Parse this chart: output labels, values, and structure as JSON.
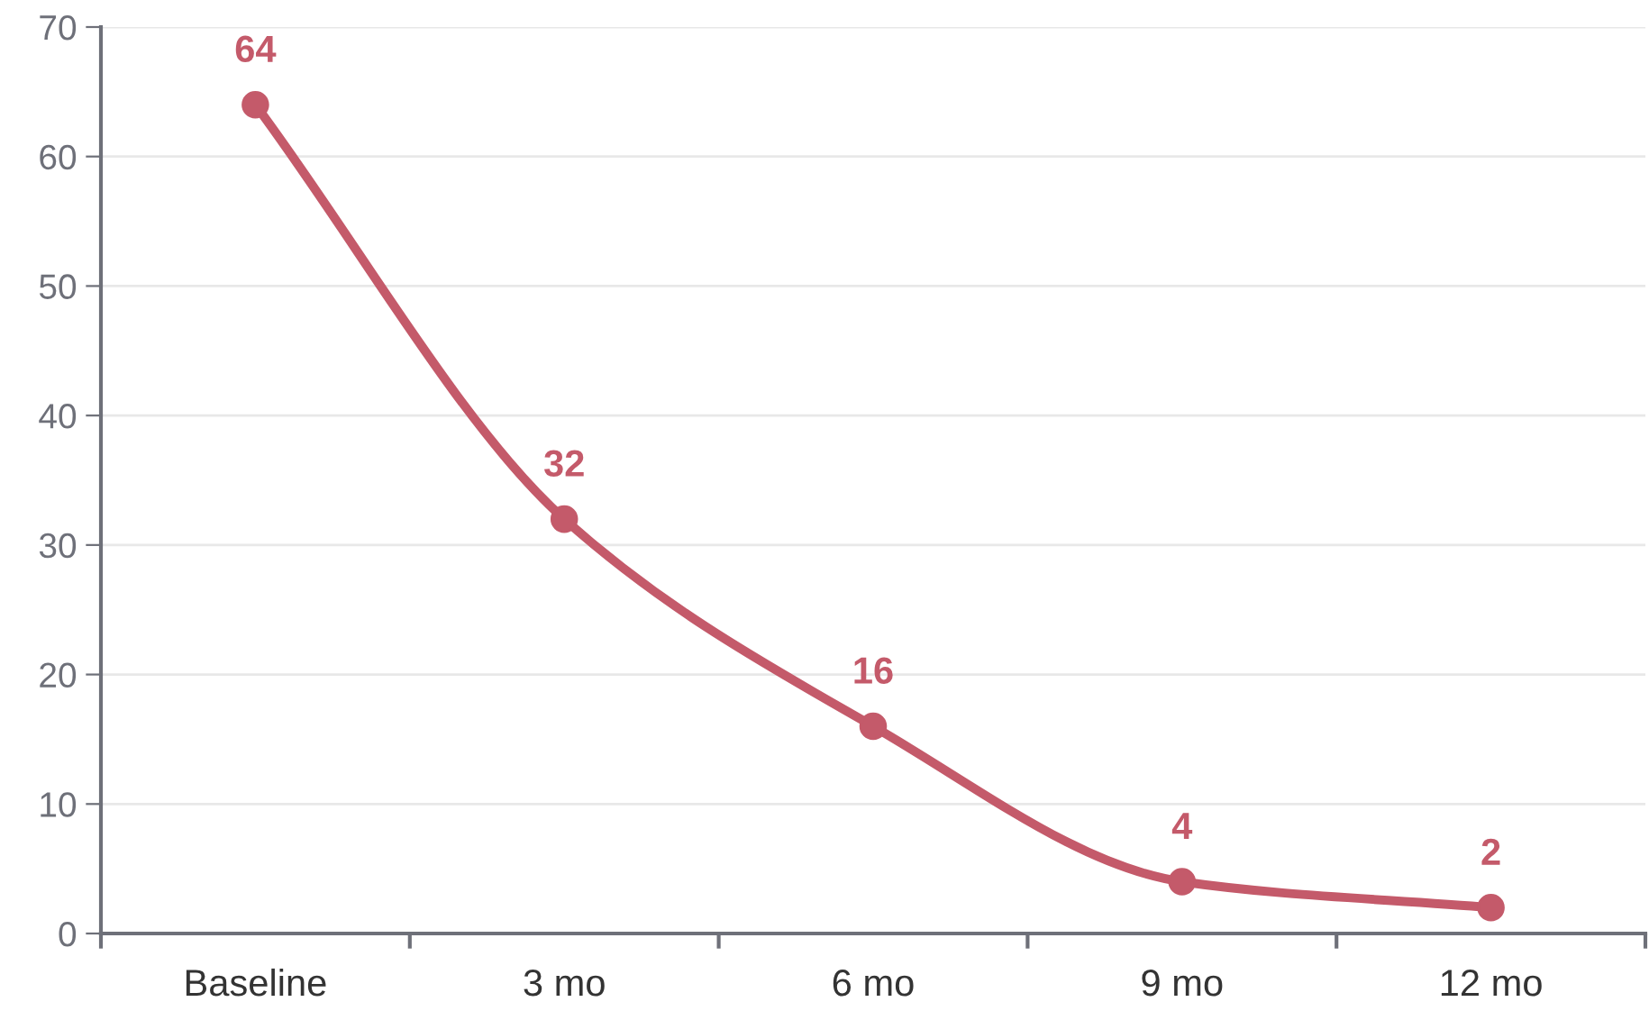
{
  "chart_data": {
    "type": "line",
    "categories": [
      "Baseline",
      "3 mo",
      "6 mo",
      "9 mo",
      "12 mo"
    ],
    "series": [
      {
        "color": "#c45a6a",
        "values": [
          64,
          32,
          16,
          4,
          2
        ]
      }
    ],
    "ylim": [
      0,
      70
    ],
    "yticks": [
      0,
      10,
      20,
      30,
      40,
      50,
      60,
      70
    ],
    "grid": "y",
    "data_labels": true,
    "marker": "circle",
    "line_style": "solid"
  }
}
